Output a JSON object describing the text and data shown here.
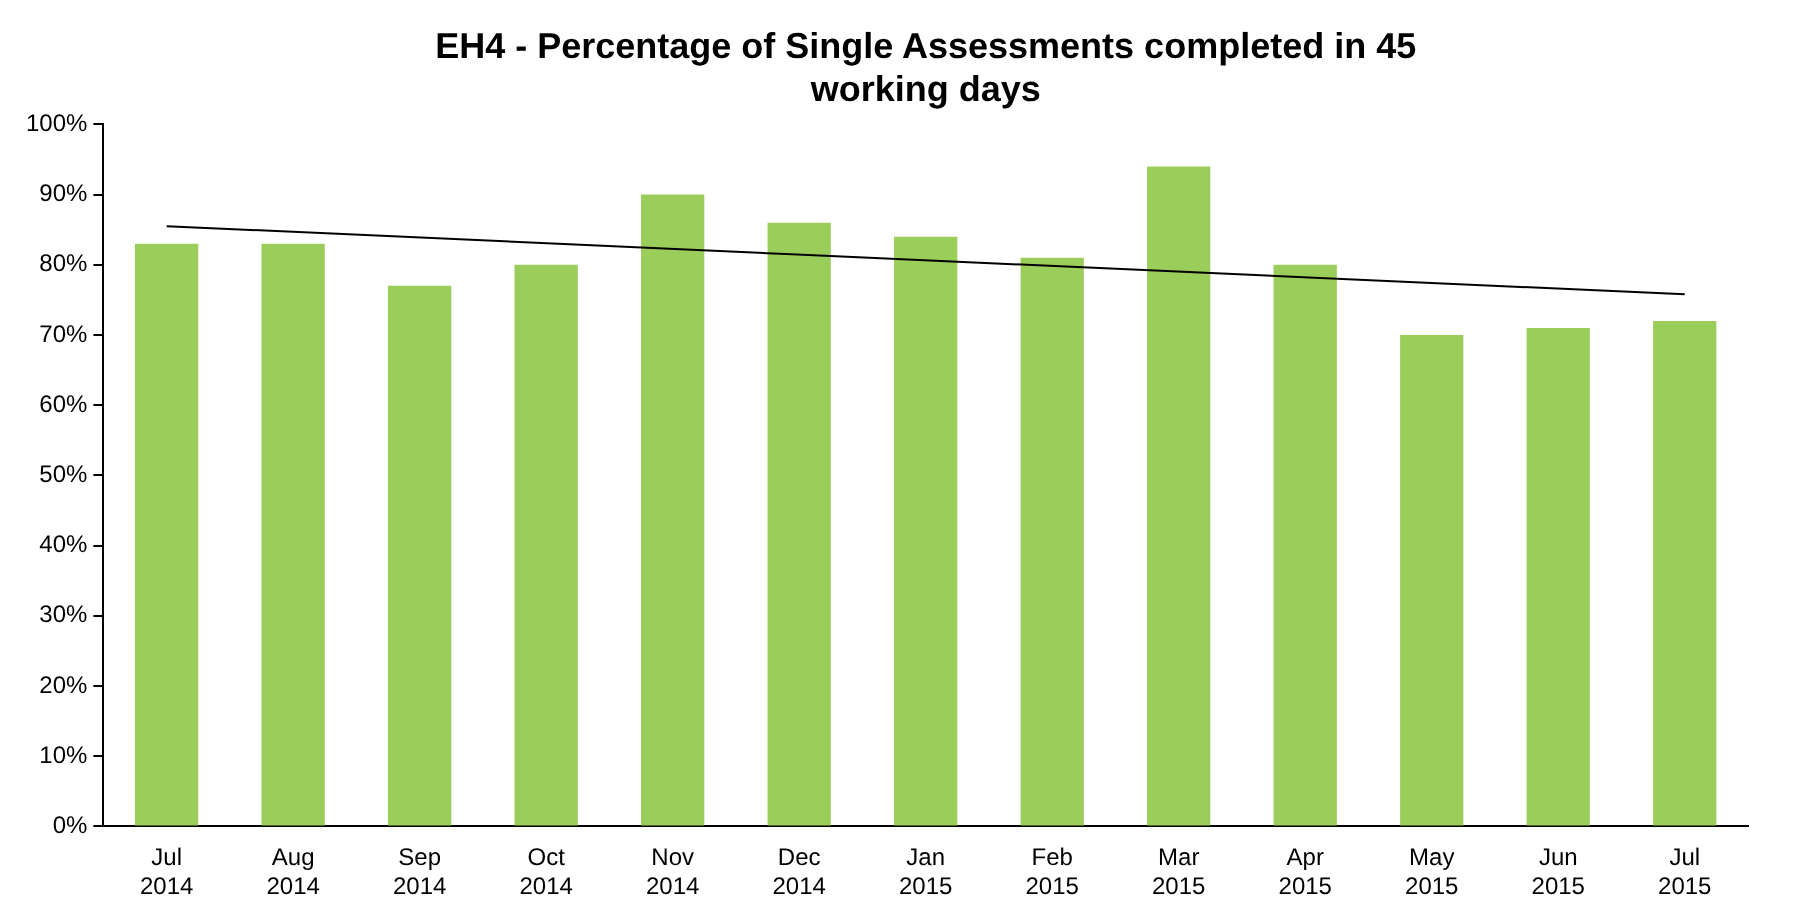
{
  "chart_data": {
    "type": "bar",
    "title": "EH4 - Percentage of Single Assessments completed in 45 working days",
    "categories": [
      "Jul 2014",
      "Aug 2014",
      "Sep 2014",
      "Oct 2014",
      "Nov 2014",
      "Dec 2014",
      "Jan 2015",
      "Feb 2015",
      "Mar 2015",
      "Apr 2015",
      "May 2015",
      "Jun 2015",
      "Jul 2015"
    ],
    "series": [
      {
        "color": "#9acd5a",
        "values": [
          83,
          83,
          77,
          80,
          90,
          86,
          84,
          81,
          94,
          80,
          70,
          71,
          72
        ]
      },
      {
        "type": "line",
        "color": "#000000",
        "x": [
          "Jul 2014",
          "Jul 2015"
        ],
        "values": [
          85.5,
          75.8
        ]
      }
    ],
    "ylim": [
      0,
      100
    ],
    "yticks": [
      {
        "value": 0,
        "label": "0%"
      },
      {
        "value": 10,
        "label": "10%"
      },
      {
        "value": 20,
        "label": "20%"
      },
      {
        "value": 30,
        "label": "30%"
      },
      {
        "value": 40,
        "label": "40%"
      },
      {
        "value": 50,
        "label": "50%"
      },
      {
        "value": 60,
        "label": "60%"
      },
      {
        "value": 70,
        "label": "70%"
      },
      {
        "value": 80,
        "label": "80%"
      },
      {
        "value": 90,
        "label": "90%"
      },
      {
        "value": 100,
        "label": "100%"
      }
    ],
    "grid": false,
    "legend": false,
    "marker": "none"
  }
}
